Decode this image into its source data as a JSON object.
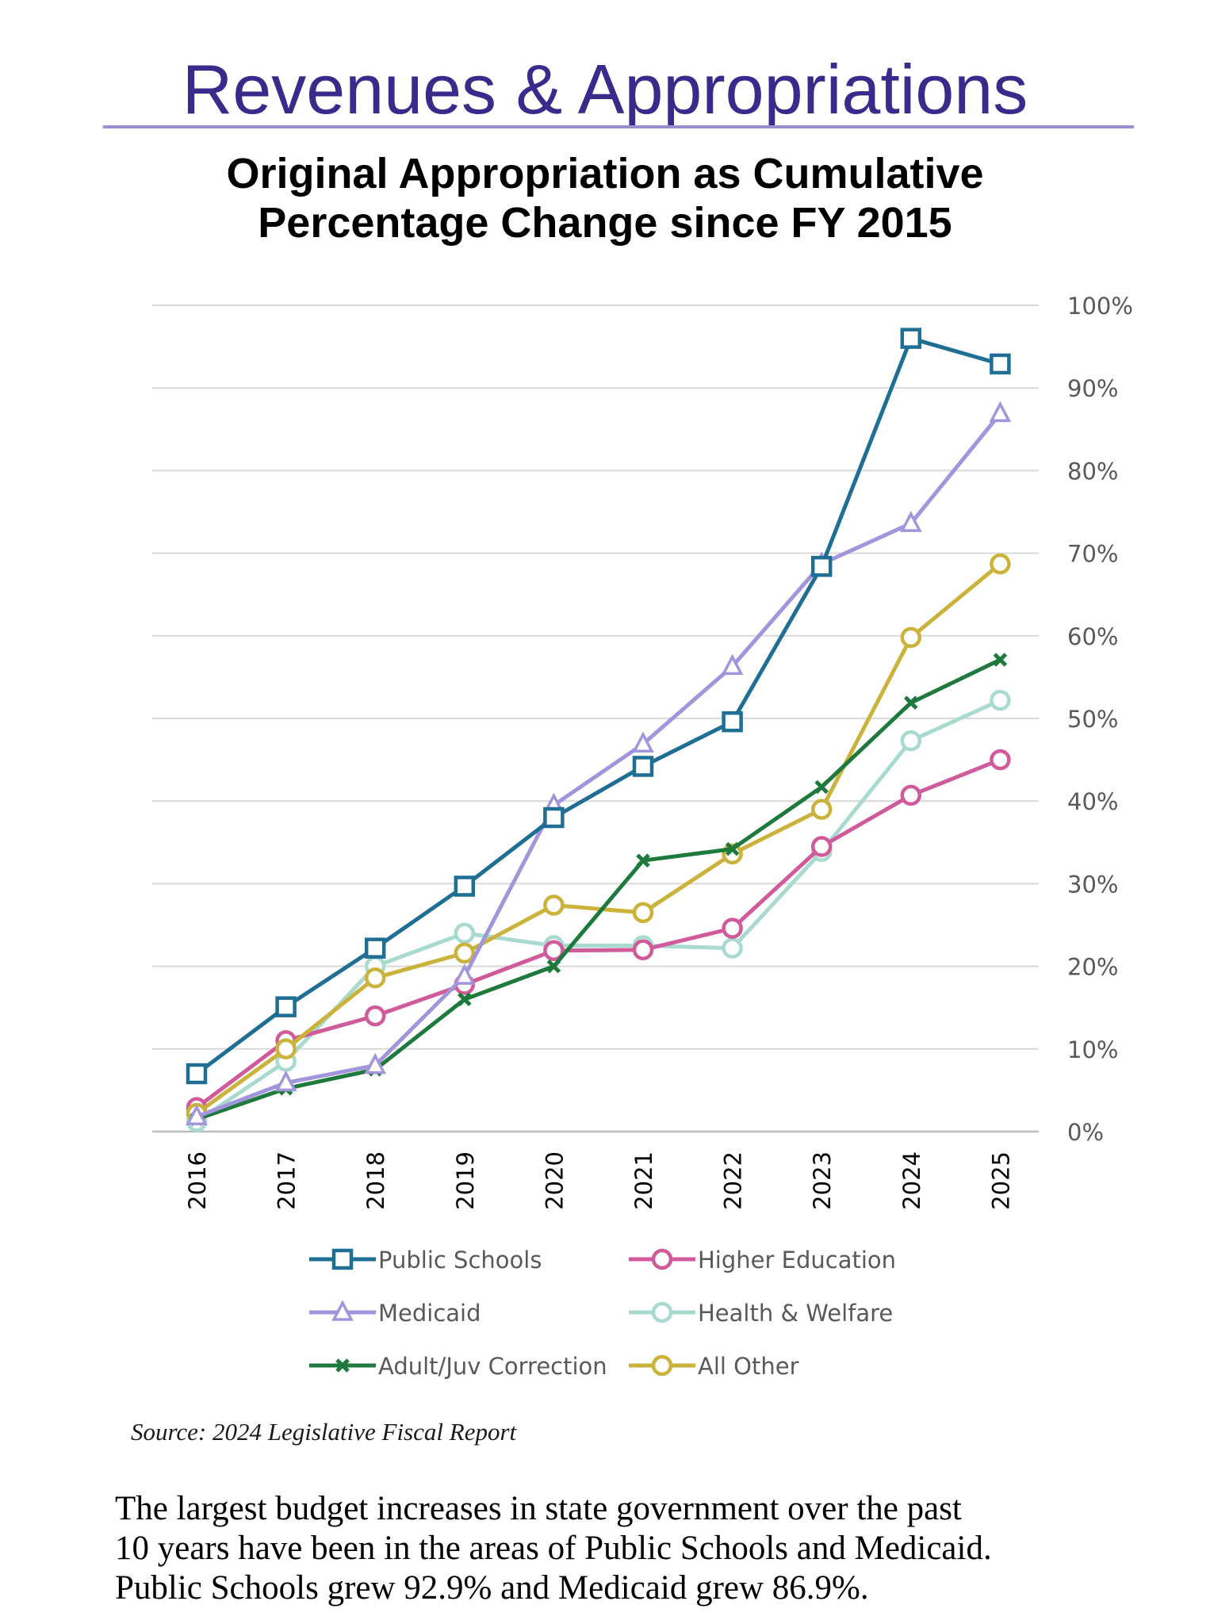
{
  "header": {
    "title": "Revenues & Appropriations"
  },
  "chart_data": {
    "type": "line",
    "title_lines": [
      "Original Appropriation as Cumulative",
      "Percentage Change since FY 2015"
    ],
    "x": [
      "2016",
      "2017",
      "2018",
      "2019",
      "2020",
      "2021",
      "2022",
      "2023",
      "2024",
      "2025"
    ],
    "ylim": [
      0,
      100
    ],
    "y_ticks": [
      "0%",
      "10%",
      "20%",
      "30%",
      "40%",
      "50%",
      "60%",
      "70%",
      "80%",
      "90%",
      "100%"
    ],
    "y_axis_side": "right",
    "grid": true,
    "legend_placement": "bottom",
    "series": [
      {
        "name": "Public Schools",
        "color": "#1f6f95",
        "marker": "square",
        "values": [
          7.0,
          15.1,
          22.2,
          29.7,
          38.0,
          44.2,
          49.6,
          68.4,
          96.0,
          92.9
        ]
      },
      {
        "name": "Higher Education",
        "color": "#d05a9a",
        "marker": "circle",
        "values": [
          2.9,
          11.0,
          14.0,
          17.8,
          21.9,
          22.0,
          24.6,
          34.5,
          40.7,
          45.0
        ]
      },
      {
        "name": "Medicaid",
        "color": "#a295dc",
        "marker": "triangle",
        "values": [
          1.8,
          5.9,
          8.0,
          18.8,
          39.5,
          46.9,
          56.3,
          68.7,
          73.6,
          86.9
        ]
      },
      {
        "name": "Health & Welfare",
        "color": "#a8dad0",
        "marker": "circle",
        "values": [
          1.2,
          8.5,
          20.0,
          24.0,
          22.5,
          22.5,
          22.2,
          33.9,
          47.3,
          52.2
        ]
      },
      {
        "name": "Adult/Juv Correction",
        "color": "#1e7a3c",
        "marker": "x",
        "values": [
          1.5,
          5.2,
          7.5,
          16.0,
          20.0,
          32.8,
          34.2,
          41.7,
          51.9,
          57.1
        ]
      },
      {
        "name": "All Other",
        "color": "#cbb23a",
        "marker": "circle",
        "values": [
          2.2,
          10.0,
          18.6,
          21.6,
          27.4,
          26.5,
          33.6,
          39.0,
          59.8,
          68.7
        ]
      }
    ]
  },
  "source": "Source: 2024 Legislative Fiscal Report",
  "summary": [
    "The largest budget increases in state government over the past",
    "10 years have been in the areas of Public Schools and Medicaid.",
    "Public Schools grew 92.9% and Medicaid grew 86.9%."
  ]
}
